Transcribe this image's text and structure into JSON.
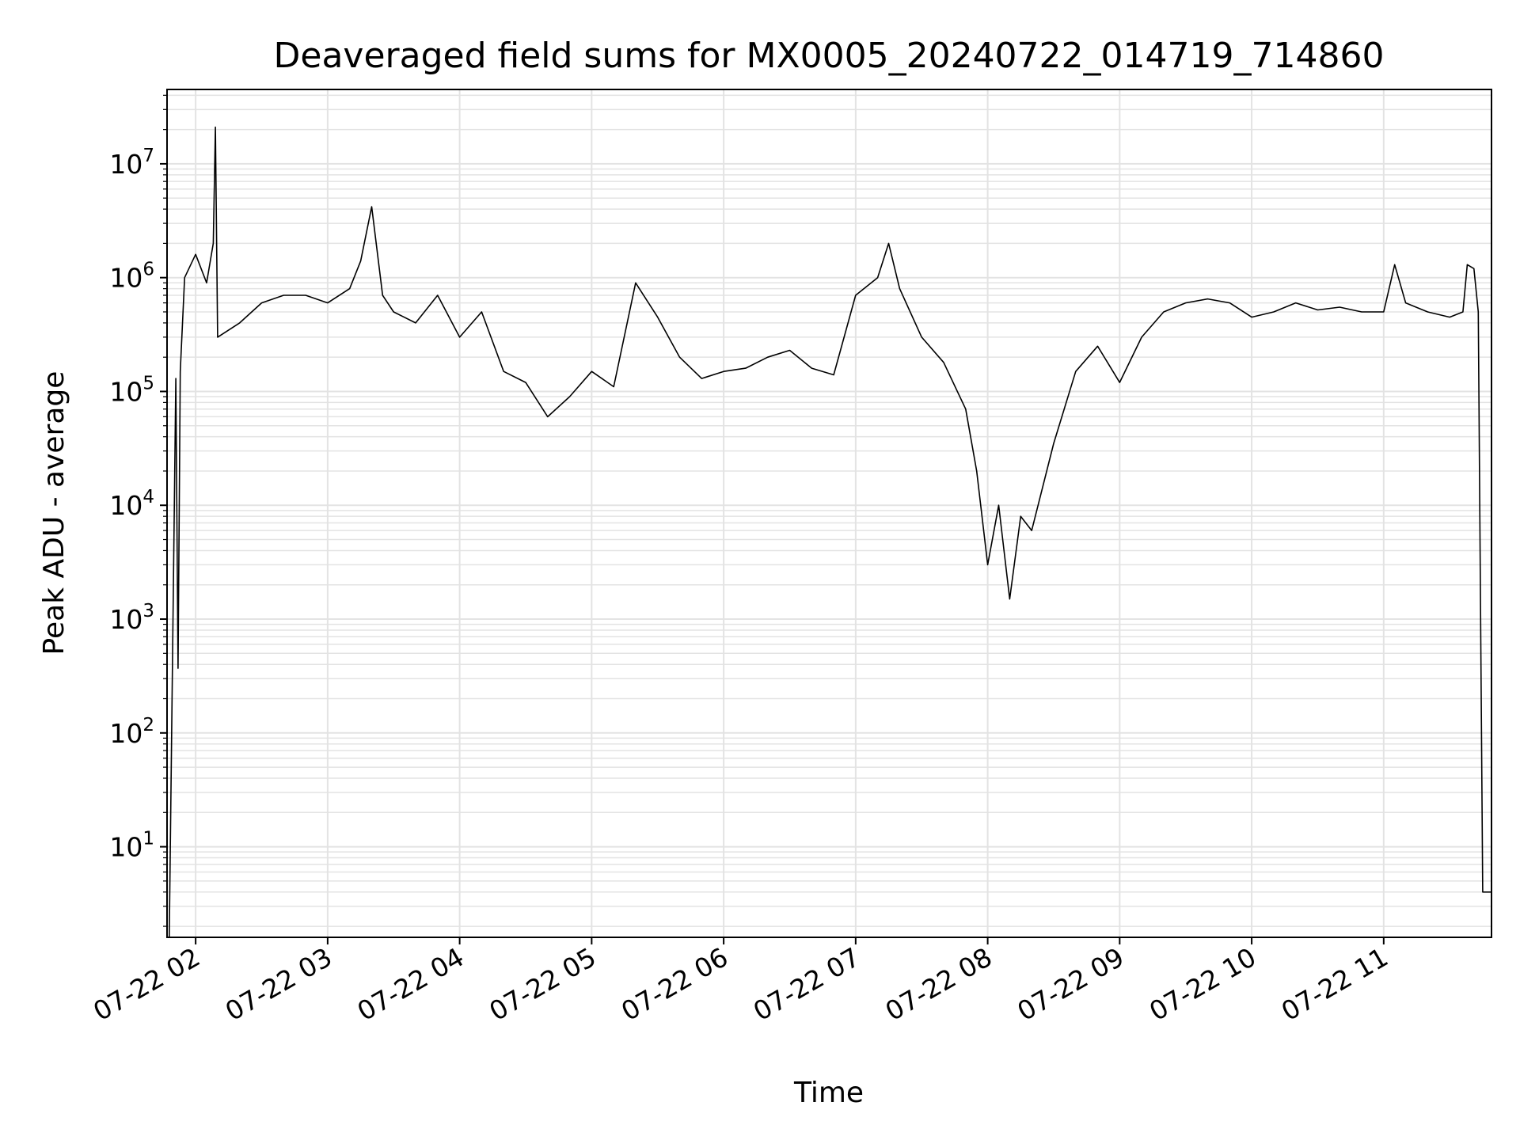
{
  "chart_data": {
    "type": "line",
    "title": "Deaveraged field sums for MX0005_20240722_014719_714860",
    "xlabel": "Time",
    "ylabel": "Peak ADU - average",
    "y_scale": "log",
    "ylim": [
      1.6,
      45000000
    ],
    "xlim": [
      "2024-07-22 01:47",
      "2024-07-22 11:49"
    ],
    "grid": true,
    "line_color": "#000000",
    "grid_color": "#e3e3e3",
    "x_ticks": [
      "07-22 02",
      "07-22 03",
      "07-22 04",
      "07-22 05",
      "07-22 06",
      "07-22 07",
      "07-22 08",
      "07-22 09",
      "07-22 10",
      "07-22 11"
    ],
    "x_tick_times": [
      "2024-07-22 02:00",
      "2024-07-22 03:00",
      "2024-07-22 04:00",
      "2024-07-22 05:00",
      "2024-07-22 06:00",
      "2024-07-22 07:00",
      "2024-07-22 08:00",
      "2024-07-22 09:00",
      "2024-07-22 10:00",
      "2024-07-22 11:00"
    ],
    "y_ticks": [
      {
        "value": 10,
        "base": "10",
        "exp": "1"
      },
      {
        "value": 100,
        "base": "10",
        "exp": "2"
      },
      {
        "value": 1000,
        "base": "10",
        "exp": "3"
      },
      {
        "value": 10000,
        "base": "10",
        "exp": "4"
      },
      {
        "value": 100000,
        "base": "10",
        "exp": "5"
      },
      {
        "value": 1000000,
        "base": "10",
        "exp": "6"
      },
      {
        "value": 10000000,
        "base": "10",
        "exp": "7"
      }
    ],
    "series": [
      {
        "x": [
          "2024-07-22 01:48",
          "2024-07-22 01:51",
          "2024-07-22 01:52",
          "2024-07-22 01:53",
          "2024-07-22 01:55",
          "2024-07-22 02:00",
          "2024-07-22 02:05",
          "2024-07-22 02:08",
          "2024-07-22 02:09",
          "2024-07-22 02:10",
          "2024-07-22 02:20",
          "2024-07-22 02:30",
          "2024-07-22 02:40",
          "2024-07-22 02:50",
          "2024-07-22 03:00",
          "2024-07-22 03:10",
          "2024-07-22 03:15",
          "2024-07-22 03:20",
          "2024-07-22 03:25",
          "2024-07-22 03:30",
          "2024-07-22 03:40",
          "2024-07-22 03:50",
          "2024-07-22 04:00",
          "2024-07-22 04:10",
          "2024-07-22 04:20",
          "2024-07-22 04:30",
          "2024-07-22 04:40",
          "2024-07-22 04:50",
          "2024-07-22 05:00",
          "2024-07-22 05:10",
          "2024-07-22 05:20",
          "2024-07-22 05:30",
          "2024-07-22 05:40",
          "2024-07-22 05:50",
          "2024-07-22 06:00",
          "2024-07-22 06:10",
          "2024-07-22 06:20",
          "2024-07-22 06:30",
          "2024-07-22 06:40",
          "2024-07-22 06:50",
          "2024-07-22 07:00",
          "2024-07-22 07:10",
          "2024-07-22 07:15",
          "2024-07-22 07:20",
          "2024-07-22 07:30",
          "2024-07-22 07:40",
          "2024-07-22 07:50",
          "2024-07-22 07:55",
          "2024-07-22 08:00",
          "2024-07-22 08:05",
          "2024-07-22 08:10",
          "2024-07-22 08:15",
          "2024-07-22 08:20",
          "2024-07-22 08:30",
          "2024-07-22 08:40",
          "2024-07-22 08:50",
          "2024-07-22 09:00",
          "2024-07-22 09:10",
          "2024-07-22 09:20",
          "2024-07-22 09:30",
          "2024-07-22 09:40",
          "2024-07-22 09:50",
          "2024-07-22 10:00",
          "2024-07-22 10:10",
          "2024-07-22 10:20",
          "2024-07-22 10:30",
          "2024-07-22 10:40",
          "2024-07-22 10:50",
          "2024-07-22 11:00",
          "2024-07-22 11:05",
          "2024-07-22 11:10",
          "2024-07-22 11:20",
          "2024-07-22 11:30",
          "2024-07-22 11:36",
          "2024-07-22 11:38",
          "2024-07-22 11:41",
          "2024-07-22 11:43",
          "2024-07-22 11:45",
          "2024-07-22 11:49"
        ],
        "y": [
          1.6,
          130000,
          370,
          150000,
          1000000,
          1600000,
          900000,
          2000000,
          21000000,
          300000,
          400000,
          600000,
          700000,
          700000,
          600000,
          800000,
          1400000,
          4200000,
          700000,
          500000,
          400000,
          700000,
          300000,
          500000,
          150000,
          120000,
          60000,
          90000,
          150000,
          110000,
          900000,
          450000,
          200000,
          130000,
          150000,
          160000,
          200000,
          230000,
          160000,
          140000,
          700000,
          1000000,
          2000000,
          800000,
          300000,
          180000,
          70000,
          20000,
          3000,
          10000,
          1500,
          8000,
          6000,
          35000,
          150000,
          250000,
          120000,
          300000,
          500000,
          600000,
          650000,
          600000,
          450000,
          500000,
          600000,
          520000,
          550000,
          500000,
          500000,
          1300000,
          600000,
          500000,
          450000,
          500000,
          1300000,
          1200000,
          500000,
          4,
          4
        ]
      }
    ]
  }
}
